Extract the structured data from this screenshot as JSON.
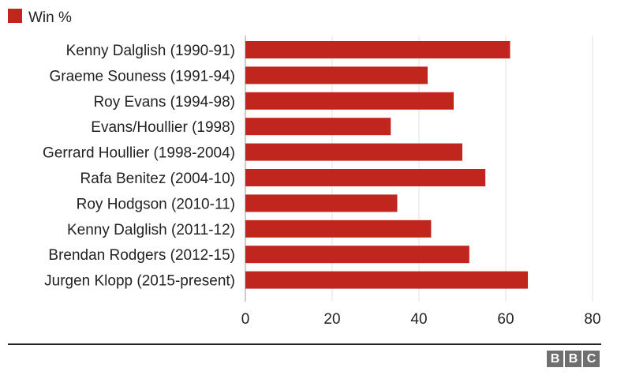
{
  "colors": {
    "bar": "#c0261e",
    "grid": "#e2e2e2",
    "axis": "#999999"
  },
  "logo": {
    "letters": [
      "B",
      "B",
      "C"
    ]
  },
  "chart_data": {
    "type": "bar",
    "orientation": "horizontal",
    "categories": [
      "Kenny Dalglish (1990-91)",
      "Graeme Souness (1991-94)",
      "Roy Evans (1994-98)",
      "Evans/Houllier (1998)",
      "Gerrard Houllier (1998-2004)",
      "Rafa Benitez (2004-10)",
      "Roy Hodgson (2010-11)",
      "Kenny Dalglish (2011-12)",
      "Brendan Rodgers (2012-15)",
      "Jurgen Klopp (2015-present)"
    ],
    "series": [
      {
        "name": "Win %",
        "values": [
          61,
          42,
          48,
          33.5,
          50,
          55.3,
          35,
          42.8,
          51.6,
          65.1
        ]
      }
    ],
    "xticks": [
      0,
      20,
      40,
      60,
      80
    ],
    "xlim": [
      0,
      82
    ],
    "grid": true,
    "legend": "top-left"
  }
}
